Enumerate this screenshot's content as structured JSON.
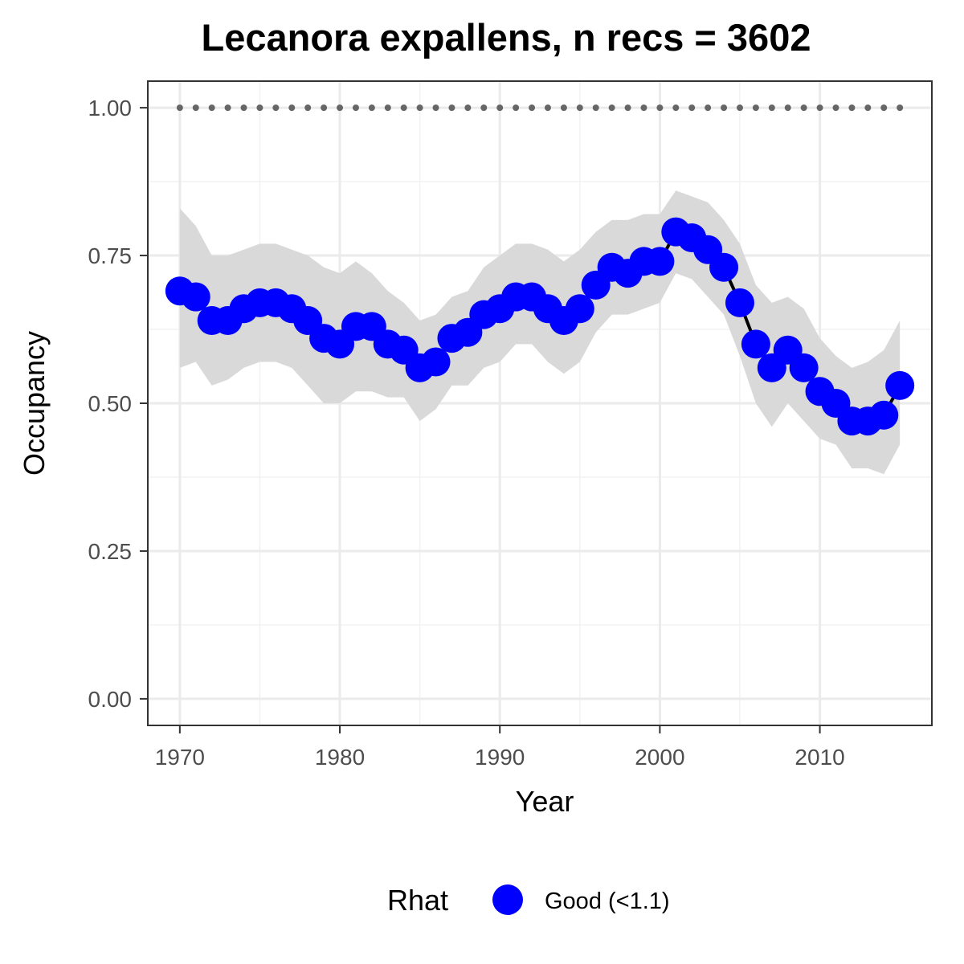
{
  "chart_data": {
    "type": "line",
    "title": "Lecanora expallens, n recs = 3602",
    "xlabel": "Year",
    "ylabel": "Occupancy",
    "xlim": [
      1968,
      2017
    ],
    "ylim": [
      -0.045,
      1.045
    ],
    "x_ticks": [
      1970,
      1980,
      1990,
      2000,
      2010
    ],
    "x_tick_labels": [
      "1970",
      "1980",
      "1990",
      "2000",
      "2010"
    ],
    "y_ticks": [
      0,
      0.25,
      0.5,
      0.75,
      1.0
    ],
    "y_tick_labels": [
      "0.00",
      "0.25",
      "0.50",
      "0.75",
      "1.00"
    ],
    "grid": true,
    "legend_position": "bottom",
    "legend_title": "Rhat",
    "series": [
      {
        "name": "Good (<1.1)",
        "color": "#0000ff",
        "x": [
          1970,
          1971,
          1972,
          1973,
          1974,
          1975,
          1976,
          1977,
          1978,
          1979,
          1980,
          1981,
          1982,
          1983,
          1984,
          1985,
          1986,
          1987,
          1988,
          1989,
          1990,
          1991,
          1992,
          1993,
          1994,
          1995,
          1996,
          1997,
          1998,
          1999,
          2000,
          2001,
          2002,
          2003,
          2004,
          2005,
          2006,
          2007,
          2008,
          2009,
          2010,
          2011,
          2012,
          2013,
          2014,
          2015
        ],
        "values": [
          0.69,
          0.68,
          0.64,
          0.64,
          0.66,
          0.67,
          0.67,
          0.66,
          0.64,
          0.61,
          0.6,
          0.63,
          0.63,
          0.6,
          0.59,
          0.56,
          0.57,
          0.61,
          0.62,
          0.65,
          0.66,
          0.68,
          0.68,
          0.66,
          0.64,
          0.66,
          0.7,
          0.73,
          0.72,
          0.74,
          0.74,
          0.79,
          0.78,
          0.76,
          0.73,
          0.67,
          0.6,
          0.56,
          0.59,
          0.56,
          0.52,
          0.5,
          0.47,
          0.47,
          0.48,
          0.53
        ],
        "upper": [
          0.83,
          0.8,
          0.75,
          0.75,
          0.76,
          0.77,
          0.77,
          0.76,
          0.75,
          0.73,
          0.72,
          0.74,
          0.72,
          0.69,
          0.67,
          0.64,
          0.65,
          0.68,
          0.69,
          0.73,
          0.75,
          0.77,
          0.77,
          0.76,
          0.74,
          0.76,
          0.79,
          0.81,
          0.81,
          0.82,
          0.82,
          0.86,
          0.85,
          0.84,
          0.81,
          0.77,
          0.7,
          0.67,
          0.68,
          0.66,
          0.61,
          0.58,
          0.56,
          0.57,
          0.59,
          0.64
        ],
        "lower": [
          0.56,
          0.57,
          0.53,
          0.54,
          0.56,
          0.57,
          0.57,
          0.56,
          0.53,
          0.5,
          0.5,
          0.52,
          0.52,
          0.51,
          0.51,
          0.47,
          0.49,
          0.53,
          0.53,
          0.56,
          0.57,
          0.6,
          0.6,
          0.57,
          0.55,
          0.57,
          0.62,
          0.65,
          0.65,
          0.66,
          0.67,
          0.72,
          0.71,
          0.68,
          0.65,
          0.58,
          0.5,
          0.46,
          0.5,
          0.47,
          0.44,
          0.43,
          0.39,
          0.39,
          0.38,
          0.43
        ]
      }
    ],
    "reference_line": {
      "y": 1.0,
      "style": "dotted",
      "color": "#666666"
    },
    "ci_color": "#d9d9d9",
    "line_color": "#000000"
  }
}
